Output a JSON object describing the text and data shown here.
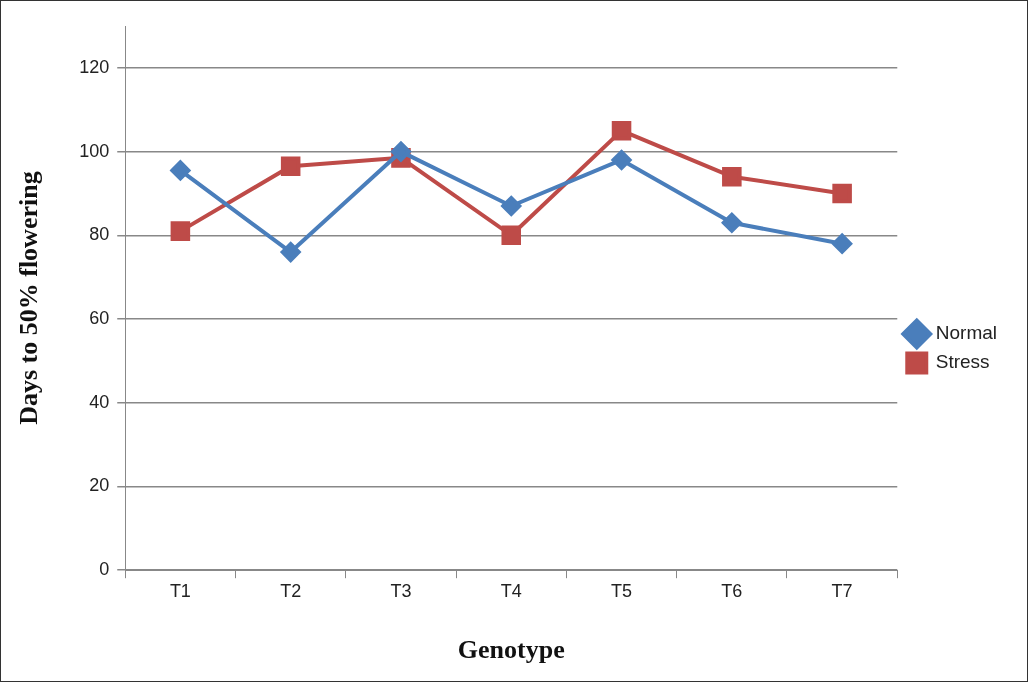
{
  "chart_data": {
    "type": "line",
    "xlabel": "Genotype",
    "ylabel": "Days to 50% flowering",
    "categories": [
      "T1",
      "T2",
      "T3",
      "T4",
      "T5",
      "T6",
      "T7"
    ],
    "series": [
      {
        "name": "Normal",
        "color": "#4a7ebb",
        "marker": "diamond",
        "values": [
          95.5,
          76,
          100,
          87,
          98,
          83,
          78
        ]
      },
      {
        "name": "Stress",
        "color": "#be4b48",
        "marker": "square",
        "values": [
          81,
          96.5,
          98.5,
          80,
          105,
          94,
          90
        ]
      }
    ],
    "ylim": [
      0,
      130
    ],
    "yticks": [
      0,
      20,
      40,
      60,
      80,
      100,
      120
    ],
    "grid": "y",
    "legend": "right",
    "line_style": "solid"
  }
}
